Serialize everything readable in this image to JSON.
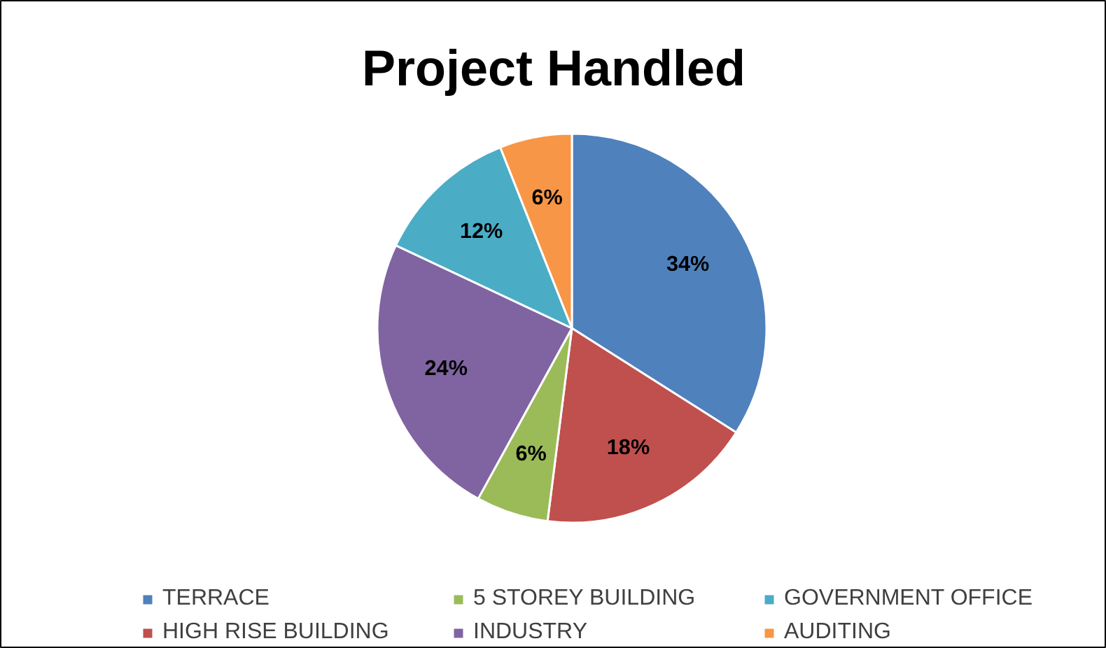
{
  "chart_data": {
    "type": "pie",
    "title": "Project Handled",
    "categories": [
      "TERRACE",
      "HIGH RISE BUILDING",
      "5 STOREY BUILDING",
      "INDUSTRY",
      "GOVERNMENT OFFICE",
      "AUDITING"
    ],
    "values": [
      34,
      18,
      6,
      24,
      12,
      6
    ],
    "colors": [
      "#4f81bd",
      "#c0504d",
      "#9bbb59",
      "#8064a2",
      "#4bacc6",
      "#f79646"
    ],
    "value_labels": [
      "34%",
      "18%",
      "6%",
      "24%",
      "12%",
      "6%"
    ],
    "legend": "bottom"
  }
}
